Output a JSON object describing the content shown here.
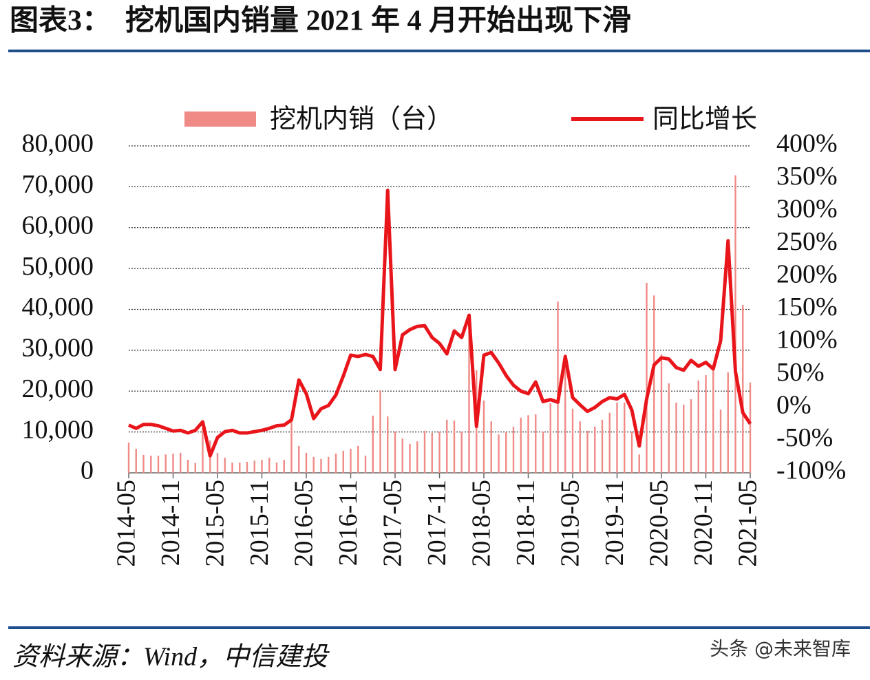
{
  "chart_data": {
    "type": "combo",
    "title": "图表3：　挖机国内销量 2021 年 4 月开始出现下滑",
    "source": "资料来源：Wind，中信建投",
    "watermark": "头条 @未来智库",
    "categories": [
      "2014-05",
      null,
      null,
      null,
      null,
      null,
      "2014-11",
      null,
      null,
      null,
      null,
      null,
      "2015-05",
      null,
      null,
      null,
      null,
      null,
      "2015-11",
      null,
      null,
      null,
      null,
      null,
      "2016-05",
      null,
      null,
      null,
      null,
      null,
      "2016-11",
      null,
      null,
      null,
      null,
      null,
      "2017-05",
      null,
      null,
      null,
      null,
      null,
      "2017-11",
      null,
      null,
      null,
      null,
      null,
      "2018-05",
      null,
      null,
      null,
      null,
      null,
      "2018-11",
      null,
      null,
      null,
      null,
      null,
      "2019-05",
      null,
      null,
      null,
      null,
      null,
      "2019-11",
      null,
      null,
      null,
      null,
      null,
      "2020-05",
      null,
      null,
      null,
      null,
      null,
      "2020-11",
      null,
      null,
      null,
      null,
      null,
      "2021-05"
    ],
    "series": [
      {
        "name": "挖机内销（台）",
        "type": "bar",
        "color": "#f08a86",
        "values": [
          7400,
          5900,
          4400,
          4200,
          4200,
          4500,
          4700,
          4900,
          3200,
          2400,
          10900,
          7900,
          4900,
          3700,
          2500,
          2500,
          2700,
          3000,
          3200,
          3700,
          2500,
          3200,
          13000,
          6600,
          4900,
          3900,
          3400,
          3900,
          4700,
          5400,
          5900,
          6600,
          4200,
          14000,
          20200,
          13800,
          10100,
          8400,
          7100,
          7700,
          10300,
          9800,
          10100,
          13000,
          12800,
          10100,
          36500,
          25100,
          17700,
          12600,
          9400,
          9900,
          11300,
          13500,
          14100,
          14300,
          10100,
          17000,
          41900,
          26400,
          15700,
          12600,
          10300,
          11300,
          13000,
          14700,
          17200,
          17200,
          10100,
          4500,
          46500,
          43400,
          29000,
          21900,
          17200,
          16700,
          18000,
          22600,
          23900,
          25600,
          15500,
          24600,
          72800,
          41100,
          22100
        ]
      },
      {
        "name": "同比增长",
        "type": "line",
        "axis": "y2",
        "color": "#e8151b",
        "values": [
          -27,
          -32,
          -26,
          -26,
          -28,
          -32,
          -36,
          -35,
          -39,
          -35,
          -22,
          -74,
          -46,
          -37,
          -35,
          -39,
          -39,
          -37,
          -35,
          -32,
          -28,
          -27,
          -19,
          42,
          21,
          -17,
          -2,
          3,
          19,
          48,
          80,
          78,
          81,
          78,
          58,
          332,
          58,
          111,
          119,
          124,
          125,
          107,
          98,
          82,
          117,
          107,
          141,
          -29,
          80,
          84,
          68,
          49,
          34,
          25,
          21,
          39,
          9,
          12,
          8,
          78,
          15,
          4,
          -6,
          0,
          9,
          15,
          13,
          20,
          -4,
          -59,
          13,
          65,
          76,
          74,
          61,
          57,
          72,
          63,
          69,
          59,
          102,
          255,
          55,
          -8,
          -25
        ]
      }
    ],
    "ylim": [
      0,
      80000
    ],
    "yticks": [
      0,
      {
        "value": 10000,
        "label": "10,000"
      },
      {
        "value": 20000,
        "label": "20,000"
      },
      {
        "value": 30000,
        "label": "30,000"
      },
      {
        "value": 40000,
        "label": "40,000"
      },
      {
        "value": 50000,
        "label": "50,000"
      },
      {
        "value": 60000,
        "label": "60,000"
      },
      {
        "value": 70000,
        "label": "70,000"
      },
      {
        "value": 80000,
        "label": "80,000"
      }
    ],
    "y2lim": [
      -100,
      400
    ],
    "y2ticks": [
      {
        "value": -100,
        "label": "-100%"
      },
      {
        "value": -50,
        "label": "-50%"
      },
      {
        "value": 0,
        "label": "0%"
      },
      {
        "value": 50,
        "label": "50%"
      },
      {
        "value": 100,
        "label": "100%"
      },
      {
        "value": 150,
        "label": "150%"
      },
      {
        "value": 200,
        "label": "200%"
      },
      {
        "value": 250,
        "label": "250%"
      },
      {
        "value": 300,
        "label": "300%"
      },
      {
        "value": 350,
        "label": "350%"
      },
      {
        "value": 400,
        "label": "400%"
      }
    ],
    "grid": true
  }
}
